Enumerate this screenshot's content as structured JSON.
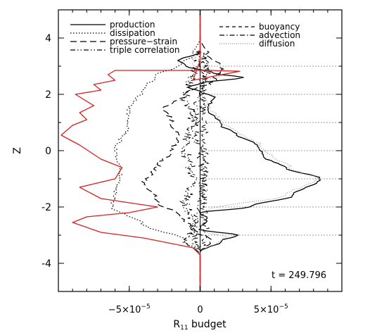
{
  "chart_data": {
    "type": "line",
    "annotation": "t = 249.796",
    "ylabel": "Z",
    "xlabel_main": "R",
    "xlabel_sub": "11",
    "xlabel_rest": " budget",
    "xlim": [
      -0.0001,
      0.0001
    ],
    "ylim": [
      -5,
      5
    ],
    "xticks": [
      {
        "value": -5e-05,
        "mant": "−5×10",
        "exp": "−5"
      },
      {
        "value": 0,
        "mant": "0",
        "exp": ""
      },
      {
        "value": 5e-05,
        "mant": "5×10",
        "exp": "−5"
      }
    ],
    "yticks": [
      -4,
      -2,
      0,
      2,
      4
    ],
    "hlines": [
      -3,
      -2,
      -1,
      0,
      1,
      2,
      3
    ],
    "legend": [
      {
        "name": "production",
        "dash": "",
        "color": "#000000"
      },
      {
        "name": "dissipation",
        "dash": "1.5 2.5",
        "color": "#000000"
      },
      {
        "name": "pressure−strain",
        "dash": "9 5",
        "color": "#000000"
      },
      {
        "name": "triple correlation",
        "dash": "7 3 1.5 3 1.5 3",
        "color": "#000000"
      },
      {
        "name": "buoyancy",
        "dash": "5 4",
        "color": "#000000"
      },
      {
        "name": "advection",
        "dash": "7 3 1.5 3",
        "color": "#000000"
      },
      {
        "name": "diffusion",
        "dash": "1 2",
        "color": "#888888"
      }
    ],
    "series": [
      {
        "id": "red",
        "color": "#d42020",
        "width": 1.3,
        "dash": "",
        "x": [
          0,
          0,
          0,
          -5e-06,
          -2e-05,
          -4e-05,
          -7e-05,
          -9e-05,
          -8e-05,
          -5e-05,
          -3e-05,
          -7e-05,
          -8.5e-05,
          -6e-05,
          -5.5e-05,
          -7e-05,
          -8.5e-05,
          -9.8e-05,
          -9e-05,
          -8e-05,
          -8.5e-05,
          -7.5e-05,
          -8.8e-05,
          -7e-05,
          -7.5e-05,
          -6e-05,
          -6.5e-05,
          -6e-05,
          -3e-05,
          5e-06,
          2.8e-05,
          5e-06,
          -5e-06,
          0,
          0,
          0
        ],
        "y": [
          -5,
          -4,
          -3.7,
          -3.45,
          -3.3,
          -3.1,
          -2.9,
          -2.55,
          -2.35,
          -2.2,
          -2.0,
          -1.7,
          -1.3,
          -1.0,
          -0.6,
          -0.3,
          0.2,
          0.55,
          0.9,
          1.1,
          1.35,
          1.6,
          2.0,
          2.15,
          2.35,
          2.5,
          2.7,
          2.85,
          2.85,
          2.85,
          2.82,
          2.6,
          2.5,
          3.2,
          4,
          5
        ]
      }
    ]
  }
}
